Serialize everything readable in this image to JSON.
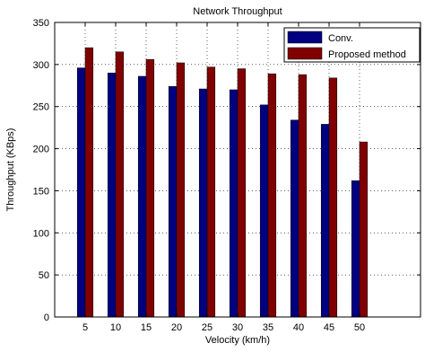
{
  "chart_data": {
    "type": "bar",
    "title": "Network Throughput",
    "xlabel": "Velocity (km/h)",
    "ylabel": "Throughput (KBps)",
    "categories": [
      "5",
      "10",
      "15",
      "20",
      "25",
      "30",
      "35",
      "40",
      "45",
      "50"
    ],
    "ylim": [
      0,
      350
    ],
    "yticks": [
      0,
      50,
      100,
      150,
      200,
      250,
      300,
      350
    ],
    "grid": true,
    "legend_position": "top-right",
    "series": [
      {
        "name": "Conv.",
        "color": "#000080",
        "values": [
          296,
          290,
          286,
          274,
          271,
          270,
          252,
          234,
          229,
          162
        ]
      },
      {
        "name": "Proposed method",
        "color": "#800000",
        "values": [
          320,
          315,
          306,
          302,
          297,
          295,
          289,
          288,
          284,
          208
        ]
      }
    ]
  }
}
